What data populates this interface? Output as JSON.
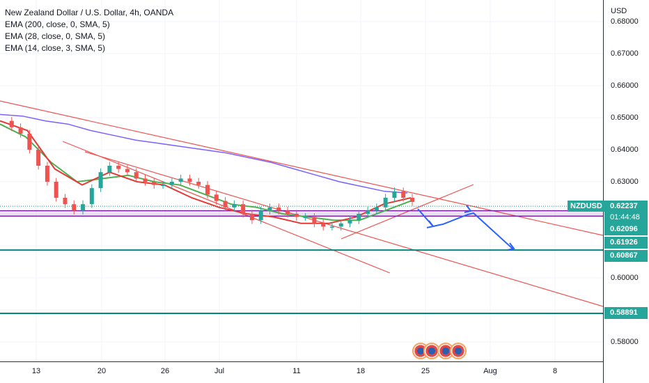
{
  "legend": {
    "title": "New Zealand Dollar / U.S. Dollar, 4h, OANDA",
    "ema200": "EMA (200, close, 0, SMA, 5)",
    "ema28": "EMA (28, close, 0, SMA, 5)",
    "ema14": "EMA (14, close, 3, SMA, 5)"
  },
  "axis": {
    "unit": "USD",
    "ticks": [
      "0.68000",
      "0.67000",
      "0.66000",
      "0.65000",
      "0.64000",
      "0.63000",
      "0.60000",
      "0.58000"
    ],
    "xticks": [
      "13",
      "20",
      "26",
      "Jul",
      "11",
      "18",
      "25",
      "Aug",
      "8"
    ]
  },
  "symbol": "NZDUSD",
  "price_labels": [
    {
      "text": "0.62237",
      "value": 0.62237,
      "color": "#26a69a"
    },
    {
      "text": "01:44:48",
      "value": 0.62237,
      "color": "#26a69a",
      "countdown": true
    },
    {
      "text": "0.62096",
      "value": 0.62096,
      "color": "#26a69a"
    },
    {
      "text": "0.61926",
      "value": 0.61926,
      "color": "#26a69a"
    },
    {
      "text": "0.60867",
      "value": 0.60867,
      "color": "#26a69a"
    },
    {
      "text": "0.58891",
      "value": 0.58891,
      "color": "#26a69a"
    }
  ],
  "colors": {
    "up": "#26a69a",
    "down": "#ef5350",
    "ema200": "#7b61ff",
    "ema28": "#4caf50",
    "ema14": "#e53935",
    "trend": "#ef5350",
    "hline": "#00897b",
    "arrow": "#2962ff",
    "purple": "#7b1fa2"
  },
  "chart_data": {
    "type": "candlestick",
    "title": "New Zealand Dollar / U.S. Dollar, 4h, OANDA",
    "ylim": [
      0.5755,
      0.6845
    ],
    "x_categories": [
      "13",
      "20",
      "26",
      "Jul",
      "11",
      "18",
      "25",
      "Aug",
      "8"
    ],
    "close_series_approx": [
      0.649,
      0.647,
      0.645,
      0.64,
      0.635,
      0.63,
      0.625,
      0.623,
      0.621,
      0.623,
      0.628,
      0.633,
      0.635,
      0.634,
      0.633,
      0.631,
      0.63,
      0.629,
      0.629,
      0.63,
      0.631,
      0.63,
      0.629,
      0.626,
      0.624,
      0.622,
      0.623,
      0.62,
      0.618,
      0.621,
      0.622,
      0.621,
      0.62,
      0.619,
      0.619,
      0.617,
      0.616,
      0.616,
      0.617,
      0.618,
      0.62,
      0.621,
      0.622,
      0.625,
      0.627,
      0.625,
      0.6237
    ],
    "ema200_approx": [
      0.651,
      0.6505,
      0.649,
      0.648,
      0.646,
      0.6445,
      0.643,
      0.642,
      0.641,
      0.64,
      0.639,
      0.6375,
      0.636,
      0.634,
      0.632,
      0.63,
      0.6285,
      0.627,
      0.6265
    ],
    "ema28_approx": [
      0.648,
      0.644,
      0.636,
      0.63,
      0.631,
      0.632,
      0.63,
      0.629,
      0.626,
      0.623,
      0.622,
      0.62,
      0.619,
      0.618,
      0.618,
      0.621,
      0.624
    ],
    "ema14_approx": [
      0.649,
      0.646,
      0.634,
      0.629,
      0.633,
      0.63,
      0.629,
      0.625,
      0.622,
      0.62,
      0.619,
      0.617,
      0.617,
      0.619,
      0.623,
      0.625
    ],
    "horizontal_levels": [
      0.62237,
      0.62096,
      0.61926,
      0.60867,
      0.58891
    ]
  }
}
